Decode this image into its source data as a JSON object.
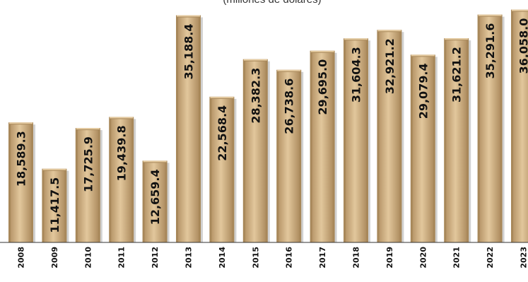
{
  "chart_data": {
    "type": "bar",
    "subtitle": "(millones de dólares)",
    "categories": [
      "2008",
      "2009",
      "2010",
      "2011",
      "2012",
      "2013",
      "2014",
      "2015",
      "2016",
      "2017",
      "2018",
      "2019",
      "2020",
      "2021",
      "2022",
      "2023"
    ],
    "values": [
      18589.3,
      11417.5,
      17725.9,
      19439.8,
      12659.4,
      35188.4,
      22568.4,
      28382.3,
      26738.6,
      29695.0,
      31604.3,
      32921.2,
      29079.4,
      31621.2,
      35291.6,
      36058.0
    ],
    "value_labels": [
      "18,589.3",
      "11,417.5",
      "17,725.9",
      "19,439.8",
      "12,659.4",
      "35,188.4",
      "22,568.4",
      "28,382.3",
      "26,738.6",
      "29,695.0",
      "31,604.3",
      "32,921.2",
      "29,079.4",
      "31,621.2",
      "35,291.6",
      "36,058.0"
    ],
    "ylim": [
      0,
      37000
    ],
    "grid": false,
    "legend": "none",
    "colors": {
      "bar": "#D2B07E",
      "bar_light": "#E6CCA2",
      "bar_dark": "#A8885A",
      "axis": "#333333"
    }
  }
}
